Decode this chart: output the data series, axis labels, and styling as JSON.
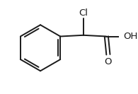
{
  "background_color": "#ffffff",
  "bond_color": "#1a1a1a",
  "text_color": "#1a1a1a",
  "line_width": 1.4,
  "label_cl": "Cl",
  "label_oh": "OH",
  "label_o": "O",
  "figsize": [
    1.95,
    1.33
  ],
  "dpi": 100,
  "font_size": 9.5
}
